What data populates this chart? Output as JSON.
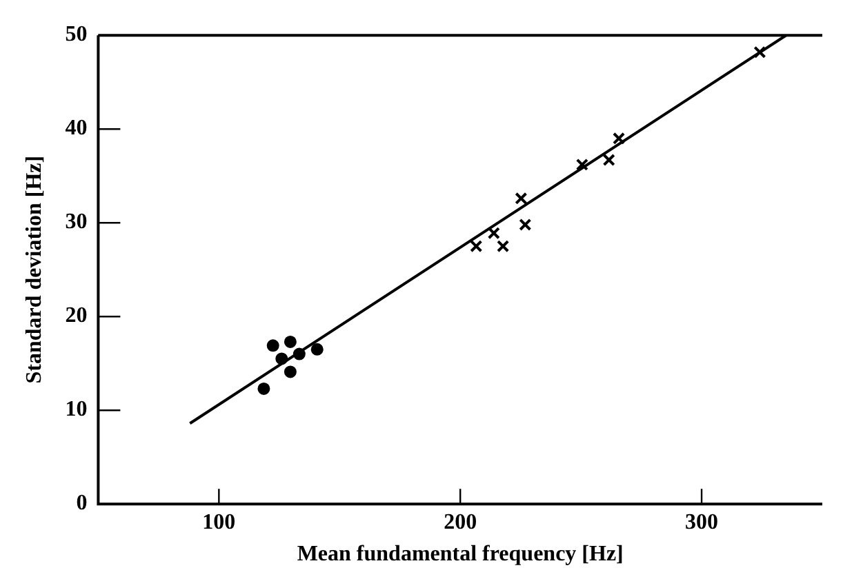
{
  "chart_data": {
    "type": "scatter",
    "xlabel": "Mean fundamental frequency [Hz]",
    "ylabel": "Standard deviation [Hz]",
    "xlim": [
      50,
      350
    ],
    "ylim": [
      0,
      50
    ],
    "xticks": [
      100,
      200,
      300
    ],
    "yticks": [
      0,
      10,
      20,
      30,
      40,
      50
    ],
    "grid": false,
    "legend": false,
    "series": [
      {
        "type": "scatter",
        "marker": "circle",
        "color": "#000000",
        "x": [
          118.6,
          122.4,
          126.0,
          129.6,
          129.6,
          133.3,
          140.7
        ],
        "values": [
          12.3,
          16.9,
          15.5,
          17.3,
          14.1,
          16.0,
          16.5
        ]
      },
      {
        "type": "scatter",
        "marker": "cross",
        "color": "#000000",
        "x": [
          206.6,
          213.9,
          217.7,
          225.2,
          226.9,
          250.5,
          261.6,
          265.7,
          324.1
        ],
        "values": [
          27.5,
          28.9,
          27.5,
          32.6,
          29.8,
          36.2,
          36.7,
          39.0,
          48.2
        ]
      },
      {
        "type": "line",
        "marker": "none",
        "line_style": "solid",
        "color": "#000000",
        "x": [
          88,
          335
        ],
        "values": [
          8.6,
          50
        ]
      }
    ]
  }
}
